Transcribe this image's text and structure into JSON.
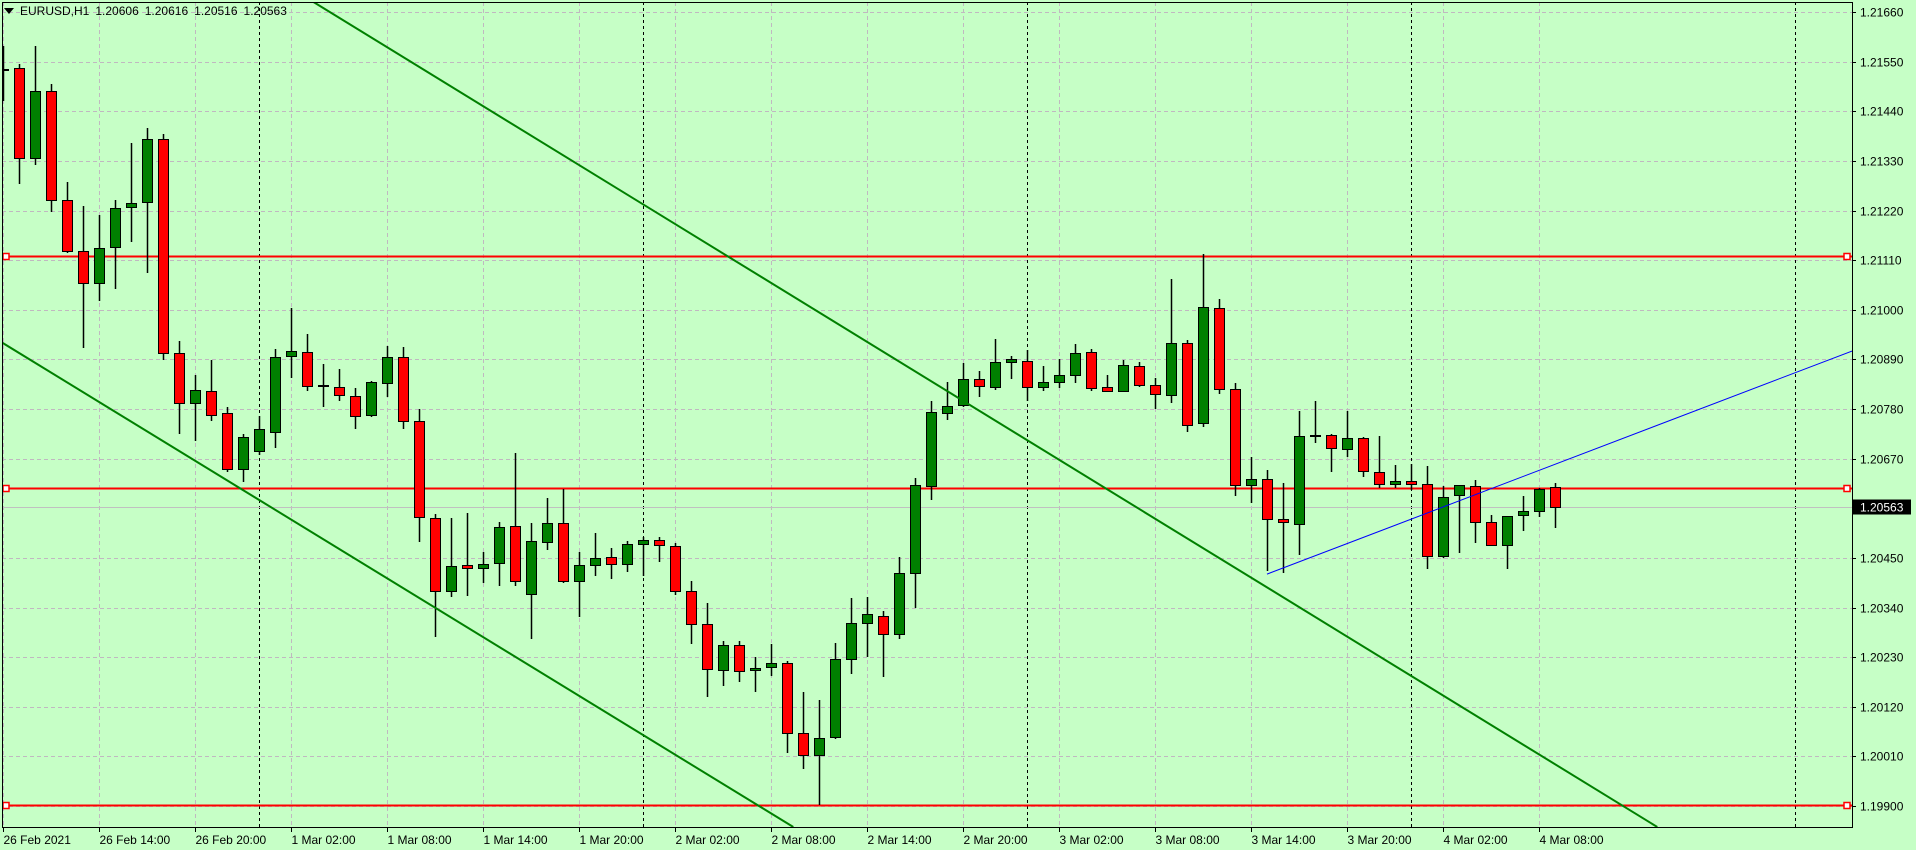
{
  "header": {
    "symbol": "EURUSD,H1",
    "open": "1.20606",
    "high": "1.20616",
    "low": "1.20516",
    "close": "1.20563",
    "menu_icon": "triangle-down-icon"
  },
  "colors": {
    "background": "#c6ffc6",
    "bull": "#008000",
    "bear": "#ff0000",
    "outline": "#000000",
    "grid": "#c0b8c0",
    "hline": "#ff0000",
    "trend_green": "#008000",
    "trend_blue": "#0000ff",
    "bid_line": "#c0c0c0"
  },
  "chart_data": {
    "type": "candlestick",
    "symbol": "EURUSD",
    "timeframe": "H1",
    "grid": true,
    "ylim": [
      1.199,
      1.2166
    ],
    "y_ticks": [
      "1.21660",
      "1.21550",
      "1.21440",
      "1.21330",
      "1.21220",
      "1.21110",
      "1.21000",
      "1.20890",
      "1.20780",
      "1.20670",
      "1.20450",
      "1.20340",
      "1.20230",
      "1.20120",
      "1.20010",
      "1.19900"
    ],
    "current_price": "1.20563",
    "x_start": "2021-02-26 08:00",
    "x_ticks": [
      "26 Feb 2021",
      "26 Feb 14:00",
      "26 Feb 20:00",
      "1 Mar 02:00",
      "1 Mar 08:00",
      "1 Mar 14:00",
      "1 Mar 20:00",
      "2 Mar 02:00",
      "2 Mar 08:00",
      "2 Mar 14:00",
      "2 Mar 20:00",
      "3 Mar 02:00",
      "3 Mar 08:00",
      "3 Mar 14:00",
      "3 Mar 20:00",
      "4 Mar 02:00",
      "4 Mar 08:00"
    ],
    "day_separators": [
      "2021-03-01 00:00",
      "2021-03-02 00:00",
      "2021-03-03 00:00",
      "2021-03-04 00:00",
      "2021-03-05 00:00"
    ],
    "ohlc": [
      [
        1.21531,
        1.21585,
        1.21463,
        1.21534
      ],
      [
        1.21536,
        1.21545,
        1.21279,
        1.21336
      ],
      [
        1.21336,
        1.21585,
        1.21321,
        1.21485
      ],
      [
        1.21485,
        1.215,
        1.21217,
        1.21243
      ],
      [
        1.21243,
        1.21283,
        1.21126,
        1.2113
      ],
      [
        1.2113,
        1.2123,
        1.20915,
        1.21059
      ],
      [
        1.21059,
        1.2121,
        1.21019,
        1.21137
      ],
      [
        1.21139,
        1.21243,
        1.21046,
        1.21226
      ],
      [
        1.21228,
        1.2137,
        1.2115,
        1.21237
      ],
      [
        1.21239,
        1.21403,
        1.21081,
        1.21379
      ],
      [
        1.21379,
        1.2139,
        1.20889,
        1.20904
      ],
      [
        1.20904,
        1.20931,
        1.20725,
        1.20793
      ],
      [
        1.20793,
        1.20855,
        1.20709,
        1.20822
      ],
      [
        1.2082,
        1.20889,
        1.20753,
        1.20767
      ],
      [
        1.20771,
        1.20784,
        1.2064,
        1.20647
      ],
      [
        1.20647,
        1.20725,
        1.20618,
        1.20718
      ],
      [
        1.20687,
        1.20764,
        1.20678,
        1.20736
      ],
      [
        1.20729,
        1.20913,
        1.20694,
        1.20895
      ],
      [
        1.20898,
        1.21004,
        1.20849,
        1.20909
      ],
      [
        1.20906,
        1.20946,
        1.2082,
        1.20831
      ],
      [
        1.20831,
        1.2088,
        1.20784,
        1.20833
      ],
      [
        1.20829,
        1.20869,
        1.20798,
        1.20811
      ],
      [
        1.20809,
        1.20827,
        1.20736,
        1.20764
      ],
      [
        1.20767,
        1.20842,
        1.20762,
        1.2084
      ],
      [
        1.20838,
        1.2092,
        1.20807,
        1.20895
      ],
      [
        1.20895,
        1.20917,
        1.20736,
        1.20753
      ],
      [
        1.20753,
        1.2078,
        1.20485,
        1.20541
      ],
      [
        1.20538,
        1.20547,
        1.20275,
        1.20377
      ],
      [
        1.20377,
        1.20538,
        1.20363,
        1.20432
      ],
      [
        1.20434,
        1.2055,
        1.20366,
        1.20428
      ],
      [
        1.20428,
        1.20463,
        1.20394,
        1.20436
      ],
      [
        1.20439,
        1.2053,
        1.20388,
        1.20518
      ],
      [
        1.20521,
        1.20682,
        1.20388,
        1.20399
      ],
      [
        1.2037,
        1.20527,
        1.2027,
        1.20487
      ],
      [
        1.20485,
        1.20583,
        1.20467,
        1.20527
      ],
      [
        1.20527,
        1.20603,
        1.20394,
        1.20399
      ],
      [
        1.20399,
        1.20463,
        1.20319,
        1.20434
      ],
      [
        1.20434,
        1.20505,
        1.2041,
        1.2045
      ],
      [
        1.20452,
        1.20472,
        1.20403,
        1.20436
      ],
      [
        1.20436,
        1.20487,
        1.20419,
        1.20481
      ],
      [
        1.20481,
        1.20496,
        1.2041,
        1.2049
      ],
      [
        1.2049,
        1.20496,
        1.20441,
        1.20479
      ],
      [
        1.20476,
        1.20483,
        1.20368,
        1.20377
      ],
      [
        1.20377,
        1.20399,
        1.20259,
        1.20303
      ],
      [
        1.20303,
        1.2035,
        1.20142,
        1.20204
      ],
      [
        1.20201,
        1.20266,
        1.20166,
        1.20257
      ],
      [
        1.20257,
        1.20266,
        1.20175,
        1.20199
      ],
      [
        1.20201,
        1.2023,
        1.20153,
        1.20206
      ],
      [
        1.20208,
        1.20259,
        1.20188,
        1.20217
      ],
      [
        1.20217,
        1.20221,
        1.20018,
        1.20062
      ],
      [
        1.20062,
        1.20153,
        1.19982,
        1.20013
      ],
      [
        1.20013,
        1.20135,
        1.19902,
        1.20051
      ],
      [
        1.20053,
        1.20261,
        1.20049,
        1.20226
      ],
      [
        1.20226,
        1.20361,
        1.20193,
        1.20306
      ],
      [
        1.20306,
        1.20363,
        1.2023,
        1.20326
      ],
      [
        1.20321,
        1.20332,
        1.20186,
        1.20281
      ],
      [
        1.20281,
        1.20452,
        1.2027,
        1.20417
      ],
      [
        1.20417,
        1.20627,
        1.20339,
        1.20612
      ],
      [
        1.20609,
        1.20798,
        1.20578,
        1.20773
      ],
      [
        1.20771,
        1.2084,
        1.20756,
        1.20787
      ],
      [
        1.20789,
        1.20882,
        1.20784,
        1.20847
      ],
      [
        1.20847,
        1.20864,
        1.20807,
        1.20831
      ],
      [
        1.20829,
        1.20935,
        1.20822,
        1.20884
      ],
      [
        1.20884,
        1.20898,
        1.20847,
        1.20891
      ],
      [
        1.20886,
        1.20911,
        1.20798,
        1.20829
      ],
      [
        1.20829,
        1.20875,
        1.2082,
        1.2084
      ],
      [
        1.2084,
        1.20891,
        1.20827,
        1.20855
      ],
      [
        1.20855,
        1.20924,
        1.20838,
        1.20904
      ],
      [
        1.20906,
        1.20913,
        1.2082,
        1.20827
      ],
      [
        1.20829,
        1.20855,
        1.20818,
        1.2082
      ],
      [
        1.2082,
        1.20889,
        1.20818,
        1.20878
      ],
      [
        1.20875,
        1.20884,
        1.20829,
        1.20833
      ],
      [
        1.20833,
        1.20849,
        1.2078,
        1.20813
      ],
      [
        1.20811,
        1.21068,
        1.20793,
        1.20926
      ],
      [
        1.20926,
        1.20933,
        1.20729,
        1.20745
      ],
      [
        1.20749,
        1.21124,
        1.2074,
        1.21006
      ],
      [
        1.21004,
        1.21024,
        1.20813,
        1.20824
      ],
      [
        1.20824,
        1.20838,
        1.20587,
        1.20612
      ],
      [
        1.20612,
        1.20674,
        1.20572,
        1.20625
      ],
      [
        1.20625,
        1.20645,
        1.20421,
        1.20536
      ],
      [
        1.20536,
        1.20616,
        1.20417,
        1.2053
      ],
      [
        1.20525,
        1.20776,
        1.20456,
        1.2072
      ],
      [
        1.2072,
        1.20798,
        1.20705,
        1.20722
      ],
      [
        1.20722,
        1.20724,
        1.2064,
        1.20694
      ],
      [
        1.20691,
        1.20776,
        1.20674,
        1.20716
      ],
      [
        1.20716,
        1.20718,
        1.20629,
        1.20643
      ],
      [
        1.2064,
        1.2072,
        1.20605,
        1.20614
      ],
      [
        1.20614,
        1.20656,
        1.20605,
        1.2062
      ],
      [
        1.2062,
        1.20658,
        1.20601,
        1.20614
      ],
      [
        1.20614,
        1.20654,
        1.20425,
        1.20454
      ],
      [
        1.20454,
        1.20609,
        1.2045,
        1.20585
      ],
      [
        1.20589,
        1.20612,
        1.20461,
        1.20612
      ],
      [
        1.20609,
        1.20623,
        1.20483,
        1.2053
      ],
      [
        1.2053,
        1.20545,
        1.20476,
        1.20479
      ],
      [
        1.20479,
        1.20543,
        1.20425,
        1.20543
      ],
      [
        1.20545,
        1.20587,
        1.2051,
        1.20554
      ],
      [
        1.20554,
        1.20605,
        1.20541,
        1.20603
      ],
      [
        1.20606,
        1.20616,
        1.20516,
        1.20563
      ]
    ],
    "horizontal_lines": [
      1.21119,
      1.20605,
      1.19902
    ],
    "trend_lines": [
      {
        "color": "trend_green",
        "extend": "both",
        "from": {
          "time": "2021-02-26 08:00",
          "price": 1.20926
        },
        "to": {
          "time": "2021-03-02 09:00",
          "price": 1.19862
        }
      },
      {
        "color": "trend_green",
        "extend": "both",
        "from": {
          "time": "2021-03-01 03:00",
          "price": 1.21691
        },
        "to": {
          "time": "2021-03-04 15:00",
          "price": 1.19862
        }
      },
      {
        "color": "trend_blue",
        "extend": "right",
        "from": {
          "time": "2021-03-03 15:00",
          "price": 1.20414
        },
        "to": {
          "time": "2021-03-04 12:00",
          "price": 1.20698
        }
      }
    ]
  }
}
